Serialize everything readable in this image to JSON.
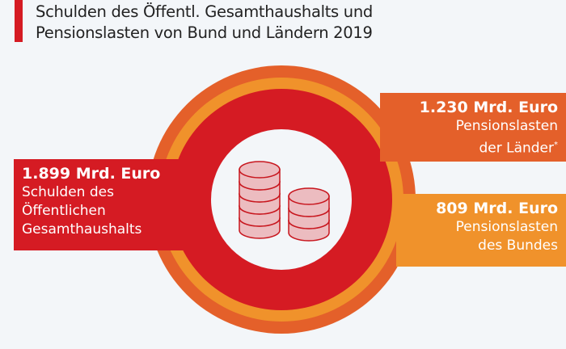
{
  "title": {
    "line1": "Schulden des Öffentl. Gesamthaushalts und",
    "line2": "Pensionslasten von Bund und Ländern 2019"
  },
  "colors": {
    "debt": "#d51b23",
    "laender": "#e4602a",
    "bund": "#f0922b"
  },
  "items": [
    {
      "value": "1.899 Mrd. Euro",
      "label1": "Schulden des",
      "label2": "Öffentlichen",
      "label3": "Gesamthaushalts"
    },
    {
      "value": "1.230 Mrd. Euro",
      "label1": "Pensionslasten",
      "label2": "der Länder",
      "note": "*"
    },
    {
      "value": "809 Mrd. Euro",
      "label1": "Pensionslasten",
      "label2": "des Bundes"
    }
  ],
  "icon": "coin-stacks-icon"
}
